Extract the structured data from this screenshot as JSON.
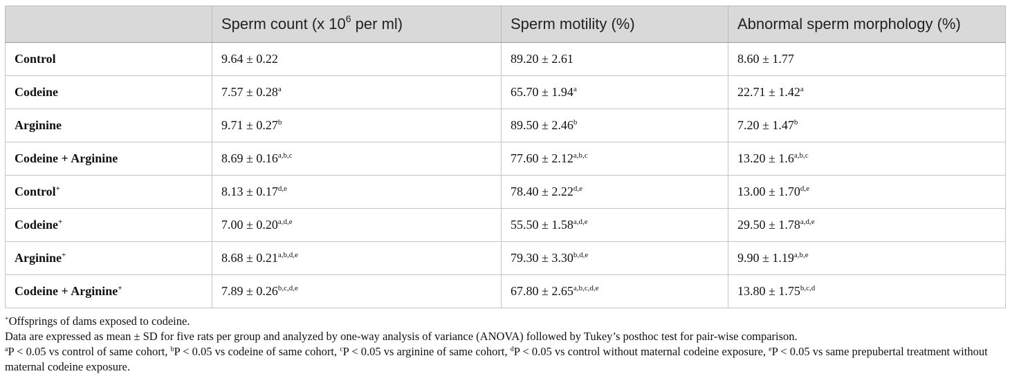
{
  "table": {
    "columns": [
      {
        "text": "",
        "sup": ""
      },
      {
        "text": "Sperm count (x 10",
        "sup": "6",
        "after": " per ml)"
      },
      {
        "text": "Sperm motility (%)",
        "sup": "",
        "after": ""
      },
      {
        "text": "Abnormal sperm morphology (%)",
        "sup": "",
        "after": ""
      }
    ],
    "rows": [
      {
        "label": "Control",
        "label_sup": "",
        "cells": [
          {
            "v": "9.64 ± 0.22",
            "s": ""
          },
          {
            "v": "89.20 ± 2.61",
            "s": ""
          },
          {
            "v": "8.60 ± 1.77",
            "s": ""
          }
        ]
      },
      {
        "label": "Codeine",
        "label_sup": "",
        "cells": [
          {
            "v": "7.57 ± 0.28",
            "s": "a"
          },
          {
            "v": "65.70 ± 1.94",
            "s": "a"
          },
          {
            "v": "22.71 ± 1.42",
            "s": "a"
          }
        ]
      },
      {
        "label": "Arginine",
        "label_sup": "",
        "cells": [
          {
            "v": "9.71 ± 0.27",
            "s": "b"
          },
          {
            "v": "89.50 ± 2.46",
            "s": "b"
          },
          {
            "v": "7.20 ± 1.47",
            "s": "b"
          }
        ]
      },
      {
        "label": "Codeine + Arginine",
        "label_sup": "",
        "cells": [
          {
            "v": "8.69 ± 0.16",
            "s": "a,b,c"
          },
          {
            "v": "77.60 ± 2.12",
            "s": "a,b,c"
          },
          {
            "v": "13.20 ± 1.6",
            "s": "a,b,c"
          }
        ]
      },
      {
        "label": "Control",
        "label_sup": "+",
        "cells": [
          {
            "v": "8.13 ± 0.17",
            "s": "d,e"
          },
          {
            "v": "78.40 ± 2.22",
            "s": "d,e"
          },
          {
            "v": "13.00 ± 1.70",
            "s": "d,e"
          }
        ]
      },
      {
        "label": "Codeine",
        "label_sup": "+",
        "cells": [
          {
            "v": "7.00 ± 0.20",
            "s": "a,d,e"
          },
          {
            "v": "55.50 ± 1.58",
            "s": "a,d,e"
          },
          {
            "v": "29.50 ± 1.78",
            "s": "a,d,e"
          }
        ]
      },
      {
        "label": "Arginine",
        "label_sup": "+",
        "cells": [
          {
            "v": "8.68 ± 0.21",
            "s": "a,b,d,e"
          },
          {
            "v": "79.30 ± 3.30",
            "s": "b,d,e"
          },
          {
            "v": "9.90 ± 1.19",
            "s": "a,b,e"
          }
        ]
      },
      {
        "label": "Codeine + Arginine",
        "label_sup": "+",
        "cells": [
          {
            "v": "7.89 ± 0.26",
            "s": "b,c,d,e"
          },
          {
            "v": "67.80 ± 2.65",
            "s": "a,b,c,d,e"
          },
          {
            "v": "13.80 ± 1.75",
            "s": "b,c,d"
          }
        ]
      }
    ]
  },
  "footnotes": {
    "plus_mark": "+",
    "plus_text": "Offsprings of dams exposed to codeine.",
    "data_text": "Data are expressed as mean ± SD for five rats per group and analyzed by one-way analysis of variance (ANOVA) followed by Tukey’s posthoc test for pair-wise comparison.",
    "sig": [
      {
        "mark": "a",
        "text": "P < 0.05 vs control of same cohort, "
      },
      {
        "mark": "b",
        "text": "P < 0.05 vs codeine of same cohort, "
      },
      {
        "mark": "c",
        "text": "P < 0.05 vs arginine of same cohort, "
      },
      {
        "mark": "d",
        "text": "P < 0.05 vs control without maternal codeine exposure, "
      },
      {
        "mark": "e",
        "text": "P < 0.05 vs same prepubertal treatment without maternal codeine exposure."
      }
    ]
  }
}
